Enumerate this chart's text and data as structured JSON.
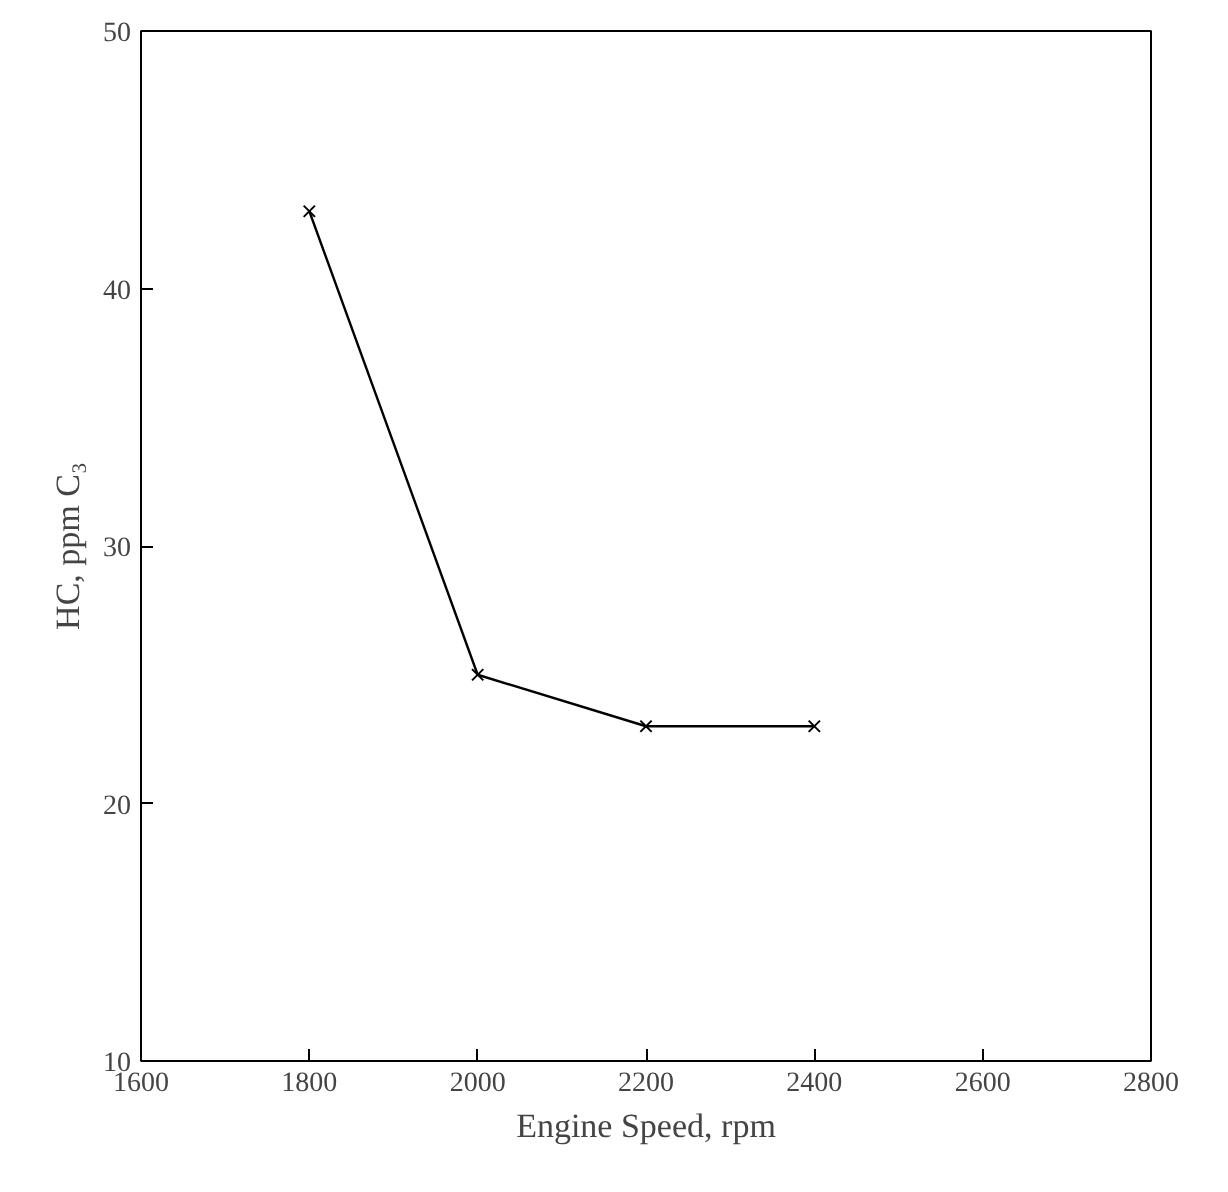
{
  "chart_data": {
    "type": "line",
    "xlabel": "Engine Speed, rpm",
    "ylabel": "HC, ppm C₃",
    "x": [
      1800,
      2000,
      2200,
      2400
    ],
    "series": [
      {
        "color": "#000000",
        "values": [
          43,
          25,
          23,
          23
        ]
      }
    ],
    "xlim": [
      1600,
      2800
    ],
    "xticks": [
      1600,
      1800,
      2000,
      2200,
      2400,
      2600,
      2800
    ],
    "ylim": [
      10,
      50
    ],
    "yticks": [
      10,
      20,
      30,
      40,
      50
    ],
    "marker": "cross",
    "line_style": "solid",
    "grid": false
  }
}
